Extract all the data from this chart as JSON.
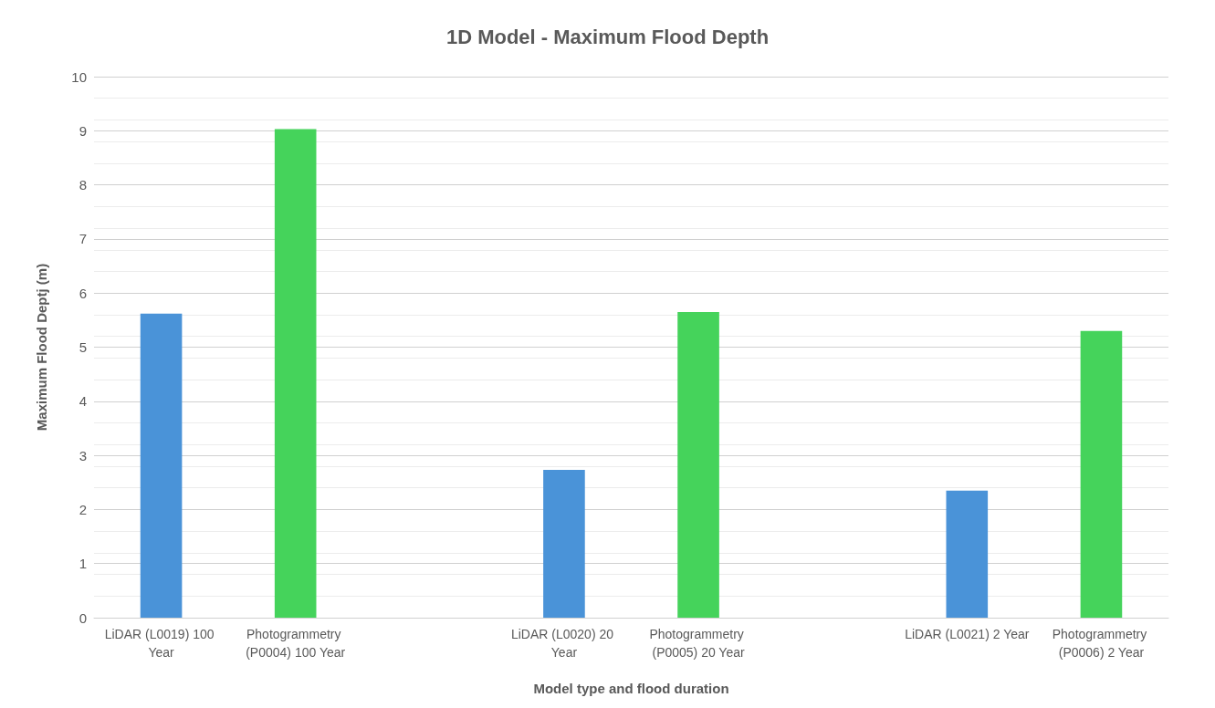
{
  "chart_data": {
    "type": "bar",
    "title": "1D Model - Maximum Flood Depth",
    "xlabel": "Model type and flood duration",
    "ylabel": "Maximum Flood Deptj (m)",
    "categories": [
      "LiDAR (L0019) 100 Year",
      "Photogrammetry (P0004) 100 Year",
      null,
      "LiDAR (L0020) 20 Year",
      "Photogrammetry (P0005) 20 Year",
      null,
      "LiDAR (L0021) 2 Year",
      "Photogrammetry (P0006) 2 Year"
    ],
    "values": [
      5.62,
      9.03,
      null,
      2.73,
      5.65,
      null,
      2.35,
      5.3
    ],
    "colors": [
      "#4a93d8",
      "#45d35b",
      null,
      "#4a93d8",
      "#45d35b",
      null,
      "#4a93d8",
      "#45d35b"
    ],
    "ylim": [
      0,
      10
    ],
    "yticks": [
      0,
      1,
      2,
      3,
      4,
      5,
      6,
      7,
      8,
      9,
      10
    ],
    "grid": "y"
  }
}
